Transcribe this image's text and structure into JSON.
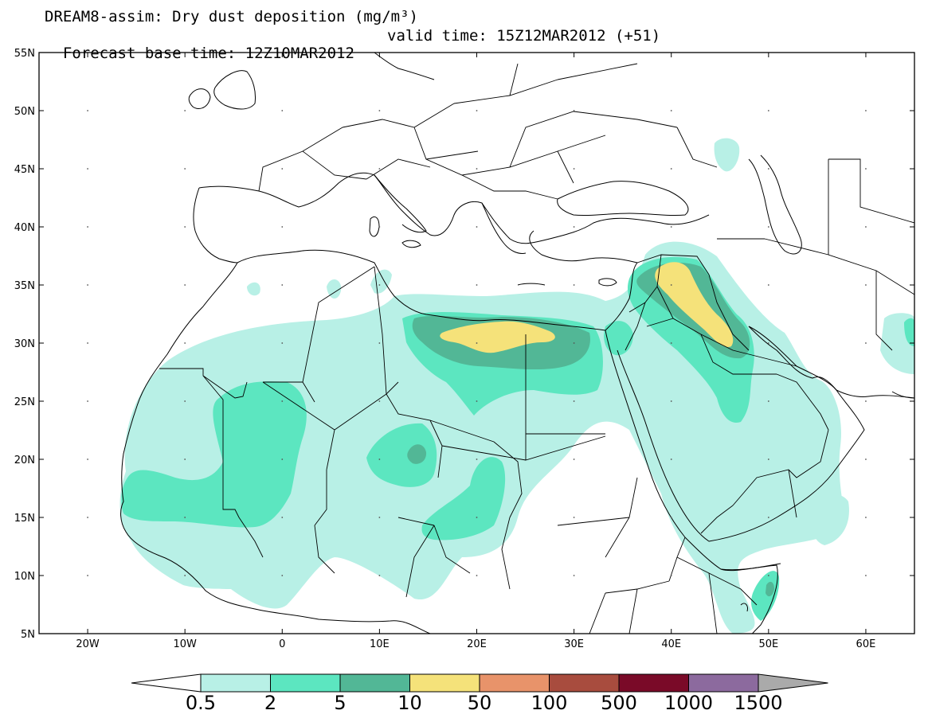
{
  "title": {
    "line1": "DREAM8-assim: Dry dust deposition (mg/m³)",
    "base_time": "Forecast base time: 12Z10MAR2012",
    "valid_time": "valid time: 15Z12MAR2012 (+51)"
  },
  "map": {
    "lon_range": [
      -25,
      65
    ],
    "lat_range": [
      5,
      55
    ],
    "lat_ticks": [
      {
        "value": 55,
        "label": "55N"
      },
      {
        "value": 50,
        "label": "50N"
      },
      {
        "value": 45,
        "label": "45N"
      },
      {
        "value": 40,
        "label": "40N"
      },
      {
        "value": 35,
        "label": "35N"
      },
      {
        "value": 30,
        "label": "30N"
      },
      {
        "value": 25,
        "label": "25N"
      },
      {
        "value": 20,
        "label": "20N"
      },
      {
        "value": 15,
        "label": "15N"
      },
      {
        "value": 10,
        "label": "10N"
      },
      {
        "value": 5,
        "label": "5N"
      }
    ],
    "lon_ticks": [
      {
        "value": -20,
        "label": "20W"
      },
      {
        "value": -10,
        "label": "10W"
      },
      {
        "value": 0,
        "label": "0"
      },
      {
        "value": 10,
        "label": "10E"
      },
      {
        "value": 20,
        "label": "20E"
      },
      {
        "value": 30,
        "label": "30E"
      },
      {
        "value": 40,
        "label": "40E"
      },
      {
        "value": 50,
        "label": "50E"
      },
      {
        "value": 60,
        "label": "60E"
      }
    ]
  },
  "legend": {
    "levels": [
      {
        "label": "0.5",
        "color": "#b8f0e6"
      },
      {
        "label": "2",
        "color": "#5ce6c0"
      },
      {
        "label": "5",
        "color": "#52b796"
      },
      {
        "label": "10",
        "color": "#f5e27a"
      },
      {
        "label": "50",
        "color": "#e8936a"
      },
      {
        "label": "100",
        "color": "#a84c3e"
      },
      {
        "label": "500",
        "color": "#7a0a28"
      },
      {
        "label": "1000",
        "color": "#8c6a9e"
      },
      {
        "label": "1500",
        "color": "#aaaaaa"
      }
    ],
    "low_color": "#ffffff"
  }
}
